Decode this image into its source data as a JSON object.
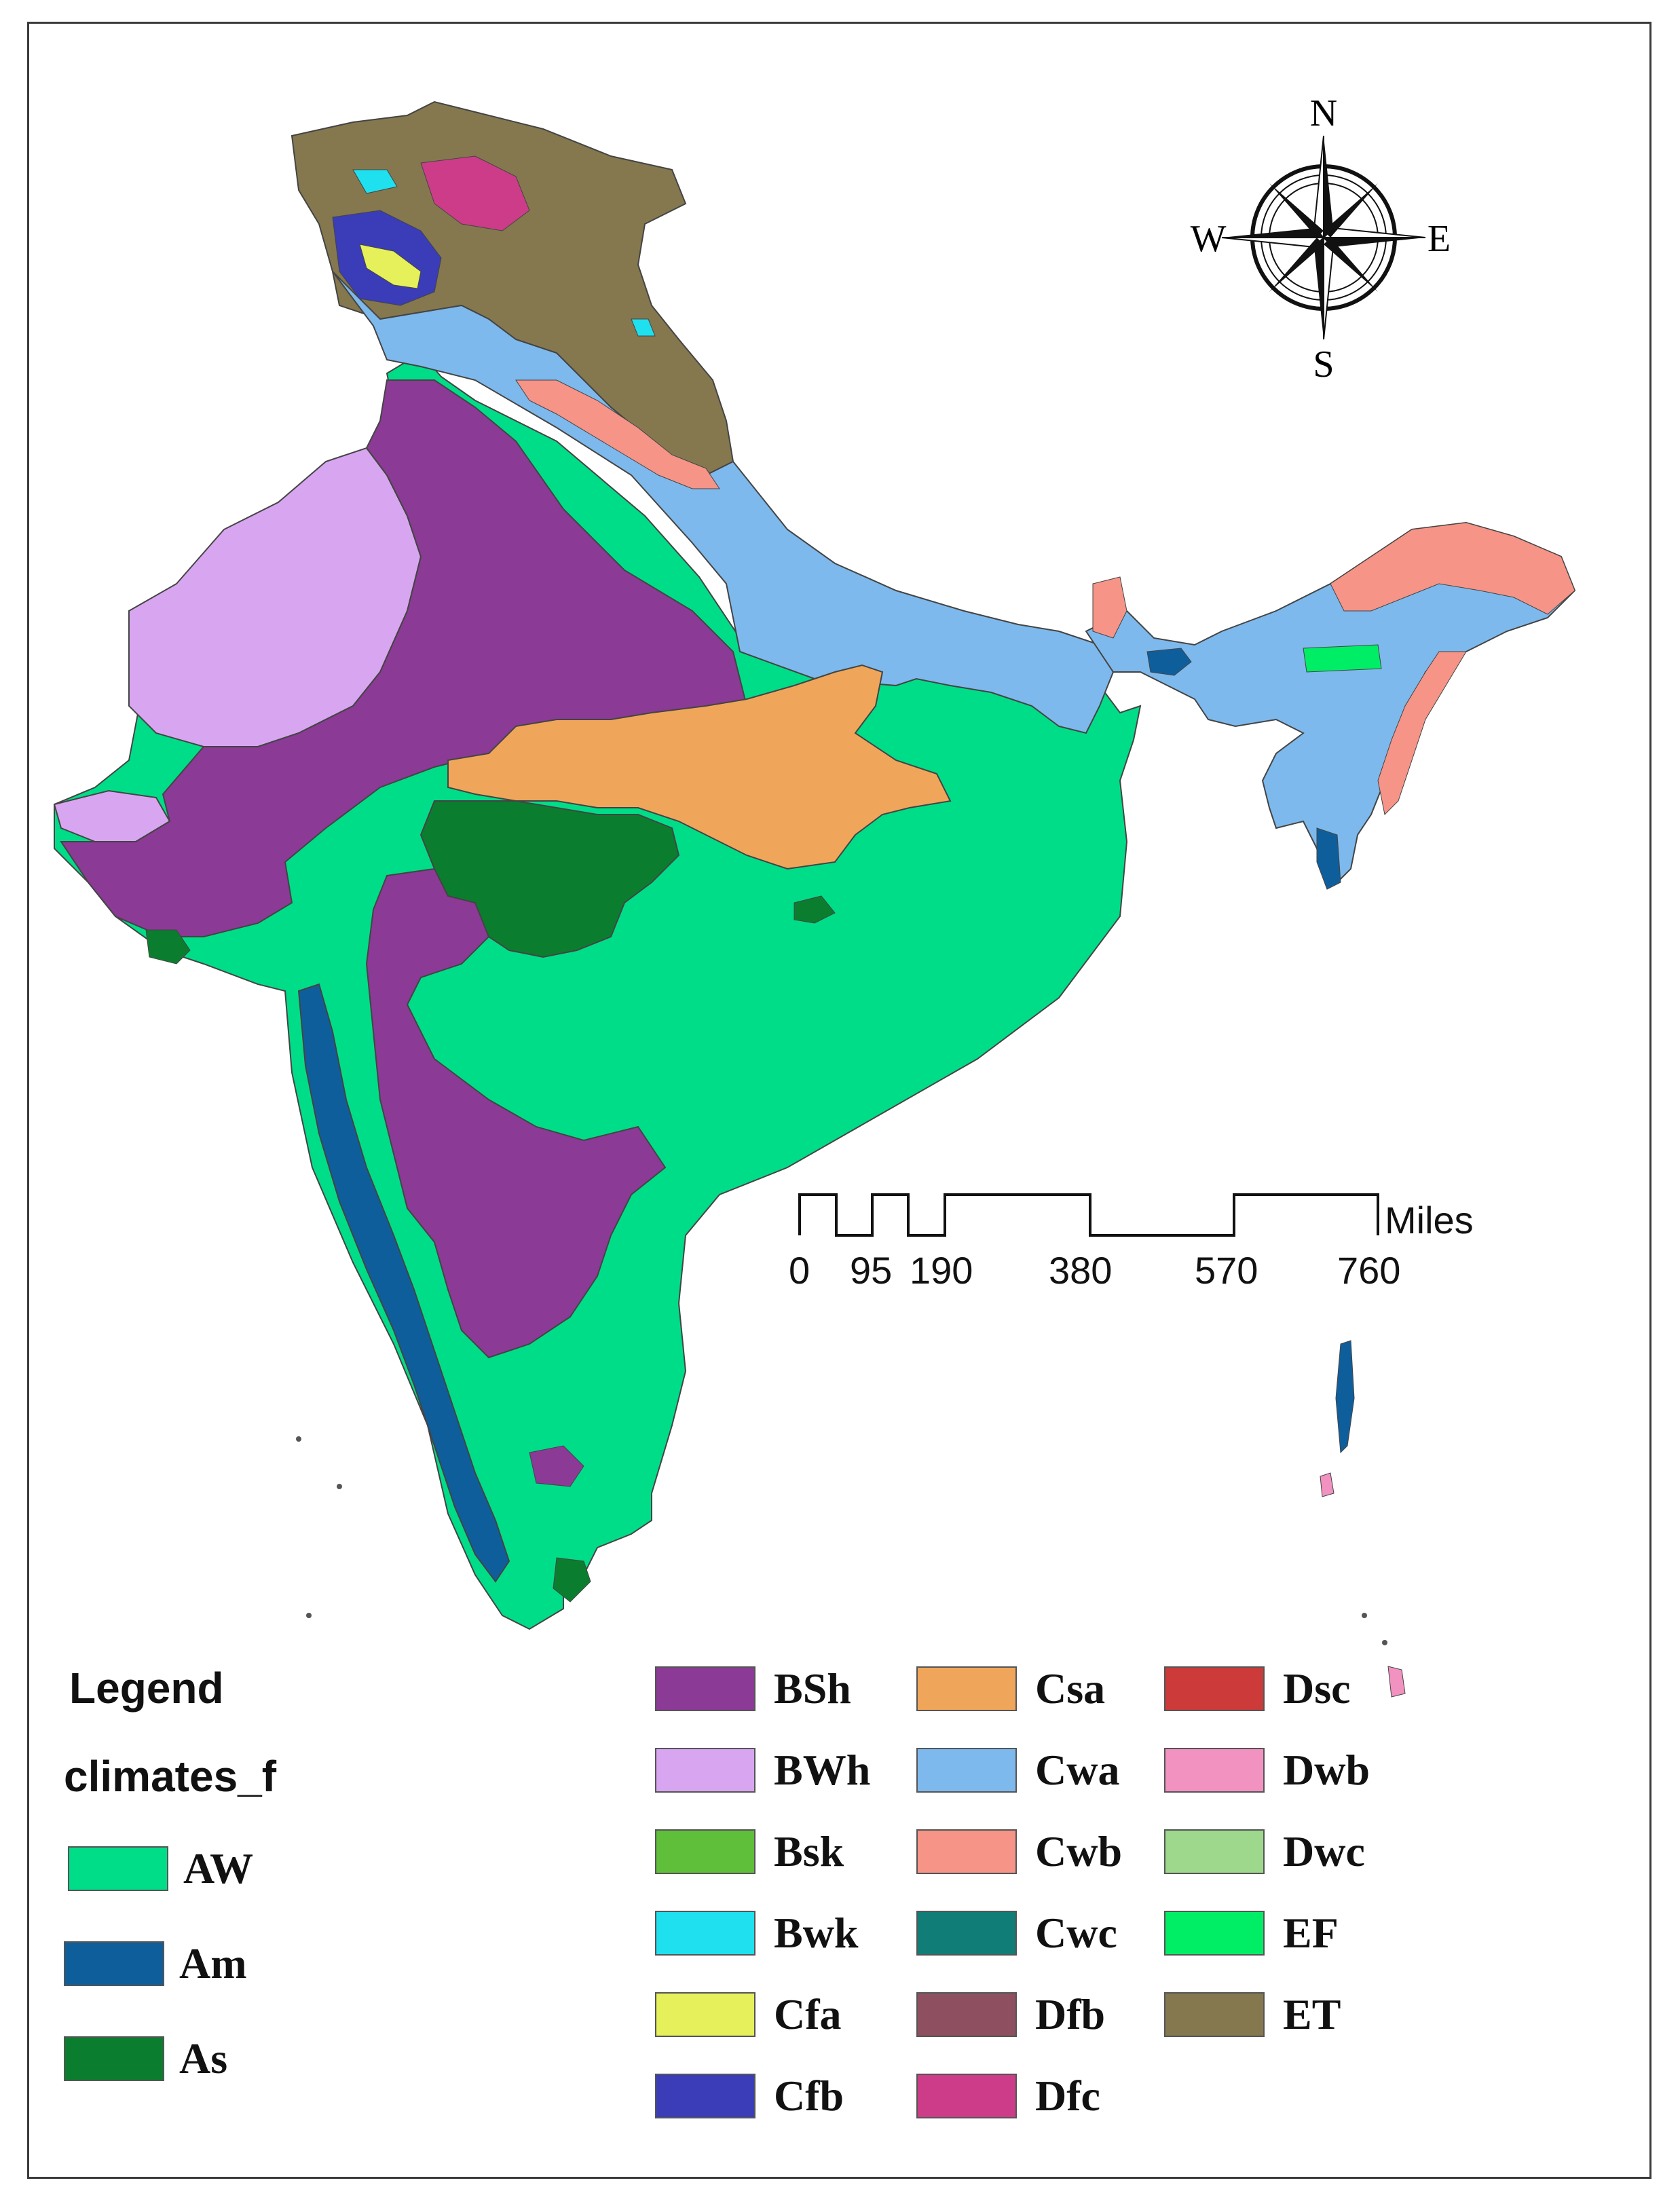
{
  "legend": {
    "title": "Legend",
    "layer": "climates_f",
    "classes_left": [
      {
        "code": "AW",
        "color": "#00DD88"
      },
      {
        "code": "Am",
        "color": "#0F5E9C"
      },
      {
        "code": "As",
        "color": "#0A7E2E"
      }
    ],
    "classes_grid": [
      {
        "code": "BSh",
        "color": "#8B3A96"
      },
      {
        "code": "BWh",
        "color": "#D8A6F0"
      },
      {
        "code": "Bsk",
        "color": "#5FBF3A"
      },
      {
        "code": "Bwk",
        "color": "#1FE0EE"
      },
      {
        "code": "Cfa",
        "color": "#E6F05A"
      },
      {
        "code": "Cfb",
        "color": "#3A3CB8"
      },
      {
        "code": "Csa",
        "color": "#F0A65A"
      },
      {
        "code": "Cwa",
        "color": "#7DB9EC"
      },
      {
        "code": "Cwb",
        "color": "#F59487"
      },
      {
        "code": "Cwc",
        "color": "#117D77"
      },
      {
        "code": "Dfb",
        "color": "#8E5060"
      },
      {
        "code": "Dfc",
        "color": "#CC3C88"
      },
      {
        "code": "Dsc",
        "color": "#CC3A3A"
      },
      {
        "code": "Dwb",
        "color": "#F292C0"
      },
      {
        "code": "Dwc",
        "color": "#9ED88C"
      },
      {
        "code": "EF",
        "color": "#00EE66"
      },
      {
        "code": "ET",
        "color": "#85784F"
      }
    ]
  },
  "scale_bar": {
    "unit": "Miles",
    "ticks": [
      "0",
      "95",
      "190",
      "380",
      "570",
      "760"
    ]
  },
  "north_arrow": {
    "n": "N",
    "s": "S",
    "e": "E",
    "w": "W"
  }
}
